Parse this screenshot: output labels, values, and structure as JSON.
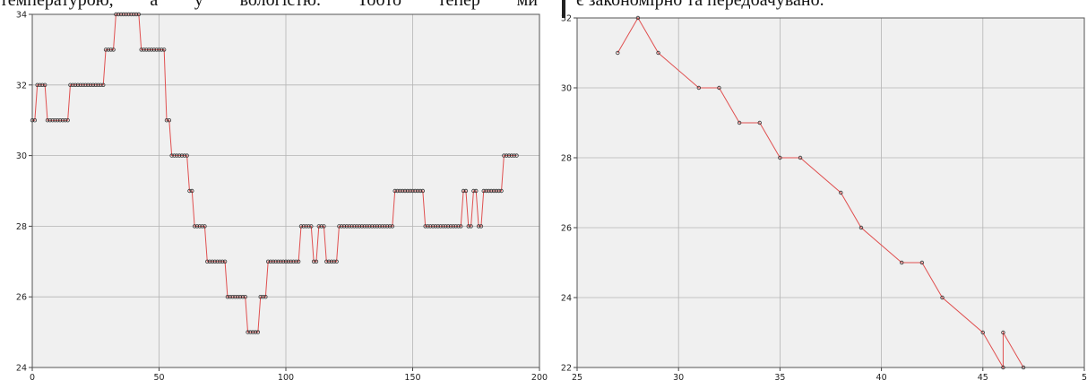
{
  "page_text": {
    "left": "температурою,  а  у  вологістю.  Тобто  тепер  ми",
    "right": "є закономірно та передбачувано."
  },
  "colors": {
    "plot_bg": "#f0f0f0",
    "line": "#e05050",
    "grid": "#b4b4b4",
    "marker": "#333333"
  },
  "chart_data": [
    {
      "type": "line",
      "title": "",
      "xlabel": "",
      "ylabel": "",
      "xlim": [
        0,
        200
      ],
      "ylim": [
        24,
        34
      ],
      "xticks": [
        "0",
        "50",
        "100",
        "150",
        "200"
      ],
      "yticks": [
        "24",
        "26",
        "28",
        "30",
        "32",
        "34"
      ],
      "grid": true,
      "markers": "circle",
      "series": [
        {
          "values": [
            31,
            31,
            32,
            32,
            32,
            32,
            31,
            31,
            31,
            31,
            31,
            31,
            31,
            31,
            31,
            32,
            32,
            32,
            32,
            32,
            32,
            32,
            32,
            32,
            32,
            32,
            32,
            32,
            32,
            33,
            33,
            33,
            33,
            34,
            34,
            34,
            34,
            34,
            34,
            34,
            34,
            34,
            34,
            33,
            33,
            33,
            33,
            33,
            33,
            33,
            33,
            33,
            33,
            31,
            31,
            30,
            30,
            30,
            30,
            30,
            30,
            30,
            29,
            29,
            28,
            28,
            28,
            28,
            28,
            27,
            27,
            27,
            27,
            27,
            27,
            27,
            27,
            26,
            26,
            26,
            26,
            26,
            26,
            26,
            26,
            25,
            25,
            25,
            25,
            25,
            26,
            26,
            26,
            27,
            27,
            27,
            27,
            27,
            27,
            27,
            27,
            27,
            27,
            27,
            27,
            27,
            28,
            28,
            28,
            28,
            28,
            27,
            27,
            28,
            28,
            28,
            27,
            27,
            27,
            27,
            27,
            28,
            28,
            28,
            28,
            28,
            28,
            28,
            28,
            28,
            28,
            28,
            28,
            28,
            28,
            28,
            28,
            28,
            28,
            28,
            28,
            28,
            28,
            29,
            29,
            29,
            29,
            29,
            29,
            29,
            29,
            29,
            29,
            29,
            29,
            28,
            28,
            28,
            28,
            28,
            28,
            28,
            28,
            28,
            28,
            28,
            28,
            28,
            28,
            28,
            29,
            29,
            28,
            28,
            29,
            29,
            28,
            28,
            29,
            29,
            29,
            29,
            29,
            29,
            29,
            29,
            30,
            30,
            30,
            30,
            30,
            30
          ]
        }
      ]
    },
    {
      "type": "line",
      "title": "",
      "xlabel": "",
      "ylabel": "",
      "xlim": [
        25,
        50
      ],
      "ylim": [
        22,
        32
      ],
      "xticks": [
        "25",
        "30",
        "35",
        "40",
        "45",
        "5"
      ],
      "yticks": [
        "22",
        "24",
        "26",
        "28",
        "30",
        "32"
      ],
      "grid": true,
      "markers": "circle",
      "series": [
        {
          "points": [
            [
              27,
              31
            ],
            [
              28,
              32
            ],
            [
              29,
              31
            ],
            [
              31,
              30
            ],
            [
              32,
              30
            ],
            [
              33,
              29
            ],
            [
              34,
              29
            ],
            [
              35,
              28
            ],
            [
              36,
              28
            ],
            [
              38,
              27
            ],
            [
              39,
              26
            ],
            [
              41,
              25
            ],
            [
              42,
              25
            ],
            [
              43,
              24
            ],
            [
              45,
              23
            ],
            [
              46,
              22
            ],
            [
              46,
              23
            ],
            [
              47,
              22
            ]
          ]
        }
      ]
    }
  ]
}
